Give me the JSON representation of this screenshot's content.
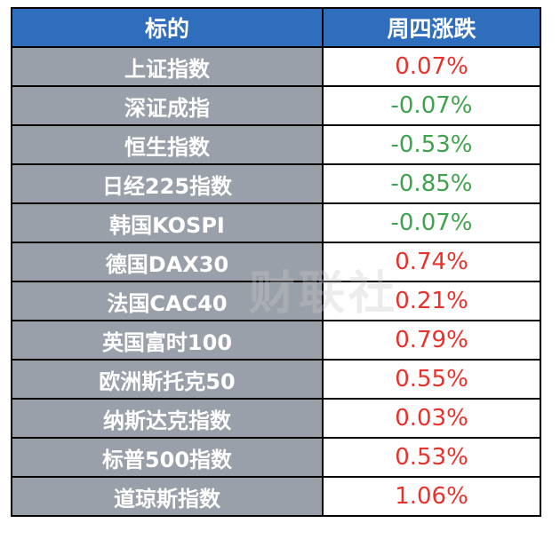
{
  "header": {
    "col1": "标的",
    "col2": "周四涨跌"
  },
  "colors": {
    "header_bg": "#2f6dbd",
    "name_bg": "#9aa0aa",
    "up": "#e8322b",
    "down": "#3fa34d"
  },
  "rows": [
    {
      "name": "上证指数",
      "change": "0.07%",
      "dir": "up"
    },
    {
      "name": "深证成指",
      "change": "-0.07%",
      "dir": "down"
    },
    {
      "name": "恒生指数",
      "change": "-0.53%",
      "dir": "down"
    },
    {
      "name": "日经225指数",
      "change": "-0.85%",
      "dir": "down"
    },
    {
      "name": "韩国KOSPI",
      "change": "-0.07%",
      "dir": "down"
    },
    {
      "name": "德国DAX30",
      "change": "0.74%",
      "dir": "up"
    },
    {
      "name": "法国CAC40",
      "change": "0.21%",
      "dir": "up"
    },
    {
      "name": "英国富时100",
      "change": "0.79%",
      "dir": "up"
    },
    {
      "name": "欧洲斯托克50",
      "change": "0.55%",
      "dir": "up"
    },
    {
      "name": "纳斯达克指数",
      "change": "0.03%",
      "dir": "up"
    },
    {
      "name": "标普500指数",
      "change": "0.53%",
      "dir": "up"
    },
    {
      "name": "道琼斯指数",
      "change": "1.06%",
      "dir": "up"
    }
  ],
  "watermark": "财联社"
}
